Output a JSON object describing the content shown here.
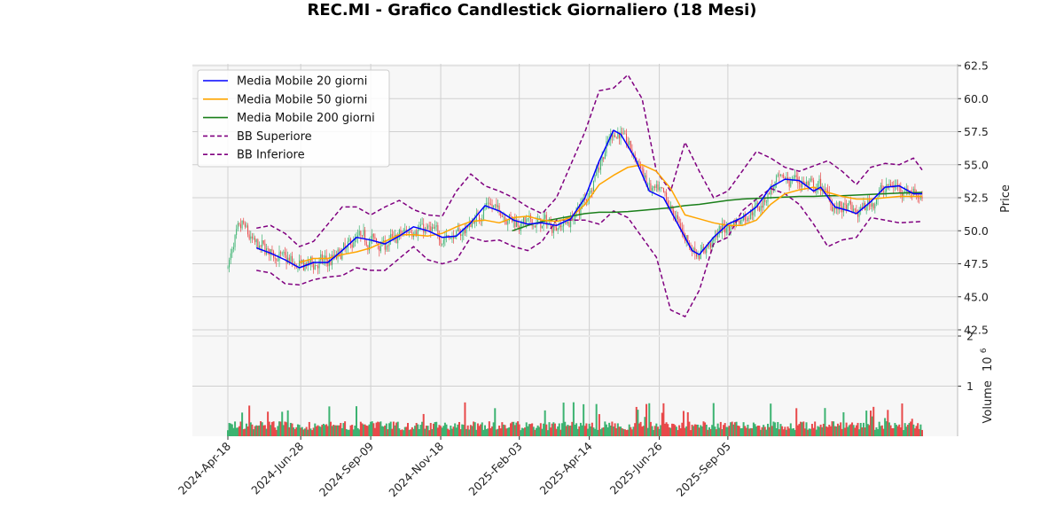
{
  "chart_data": {
    "type": "candlestick",
    "title": "REC.MI - Grafico Candlestick Giornaliero (18 Mesi)",
    "ylabel": "Price",
    "volume_label": "Volume",
    "volume_exponent_base": "10",
    "volume_exponent_power": "6",
    "ylim": [
      42.5,
      62.5
    ],
    "volume_ylim": [
      0,
      2000000
    ],
    "price_ticks": [
      "42.5",
      "45.0",
      "47.5",
      "50.0",
      "52.5",
      "55.0",
      "57.5",
      "60.0",
      "62.5"
    ],
    "volume_ticks": [
      "1",
      "2"
    ],
    "date_ticks": [
      "2024-Apr-18",
      "2024-Jun-28",
      "2024-Sep-09",
      "2024-Nov-18",
      "2025-Feb-03",
      "2025-Apr-14",
      "2025-Jun-26",
      "2025-Sep-05"
    ],
    "grid": true,
    "legend_position": "top-left",
    "colors": {
      "up": "#3cb371",
      "down": "#e8494a",
      "ma20": "#0000ff",
      "ma50": "#ffa500",
      "ma200": "#1a7f1a",
      "bb": "#800080",
      "panel_bg": "#f7f7f7",
      "grid": "#d0d0d0"
    },
    "legend": [
      {
        "label": "Media Mobile 20 giorni",
        "style": "solid",
        "color_key": "ma20"
      },
      {
        "label": "Media Mobile 50 giorni",
        "style": "solid",
        "color_key": "ma50"
      },
      {
        "label": "Media Mobile 200 giorni",
        "style": "solid",
        "color_key": "ma200"
      },
      {
        "label": "BB Superiore",
        "style": "dashed",
        "color_key": "bb"
      },
      {
        "label": "BB Inferiore",
        "style": "dashed",
        "color_key": "bb"
      }
    ],
    "series": {
      "ma20": [
        [
          20,
          48.7
        ],
        [
          30,
          48.3
        ],
        [
          40,
          47.8
        ],
        [
          50,
          47.2
        ],
        [
          60,
          47.6
        ],
        [
          70,
          47.6
        ],
        [
          80,
          48.5
        ],
        [
          90,
          49.5
        ],
        [
          100,
          49.3
        ],
        [
          110,
          49.0
        ],
        [
          120,
          49.6
        ],
        [
          130,
          50.3
        ],
        [
          140,
          50.0
        ],
        [
          150,
          49.5
        ],
        [
          160,
          49.6
        ],
        [
          170,
          50.6
        ],
        [
          180,
          51.9
        ],
        [
          190,
          51.5
        ],
        [
          200,
          50.8
        ],
        [
          210,
          50.5
        ],
        [
          220,
          50.6
        ],
        [
          230,
          50.4
        ],
        [
          240,
          50.9
        ],
        [
          250,
          52.5
        ],
        [
          260,
          55.3
        ],
        [
          270,
          57.6
        ],
        [
          275,
          57.3
        ],
        [
          285,
          55.5
        ],
        [
          295,
          53.0
        ],
        [
          305,
          52.5
        ],
        [
          315,
          50.5
        ],
        [
          325,
          48.5
        ],
        [
          330,
          48.2
        ],
        [
          340,
          49.5
        ],
        [
          350,
          50.5
        ],
        [
          360,
          51.0
        ],
        [
          370,
          51.8
        ],
        [
          380,
          53.3
        ],
        [
          390,
          53.9
        ],
        [
          400,
          53.8
        ],
        [
          410,
          53.0
        ],
        [
          415,
          53.3
        ],
        [
          425,
          51.8
        ],
        [
          435,
          51.5
        ],
        [
          440,
          51.3
        ],
        [
          450,
          52.2
        ],
        [
          460,
          53.3
        ],
        [
          470,
          53.4
        ],
        [
          480,
          52.8
        ],
        [
          486,
          52.8
        ]
      ],
      "ma50": [
        [
          50,
          47.6
        ],
        [
          60,
          47.9
        ],
        [
          70,
          47.9
        ],
        [
          80,
          48.2
        ],
        [
          90,
          48.4
        ],
        [
          100,
          48.7
        ],
        [
          110,
          49.2
        ],
        [
          120,
          49.7
        ],
        [
          130,
          49.7
        ],
        [
          140,
          49.6
        ],
        [
          150,
          49.8
        ],
        [
          160,
          50.3
        ],
        [
          170,
          50.7
        ],
        [
          180,
          50.8
        ],
        [
          190,
          50.6
        ],
        [
          200,
          51.0
        ],
        [
          210,
          51.1
        ],
        [
          220,
          50.8
        ],
        [
          230,
          50.7
        ],
        [
          240,
          51.0
        ],
        [
          250,
          52.0
        ],
        [
          260,
          53.5
        ],
        [
          270,
          54.2
        ],
        [
          280,
          54.8
        ],
        [
          290,
          55.0
        ],
        [
          300,
          54.5
        ],
        [
          310,
          53.2
        ],
        [
          320,
          51.2
        ],
        [
          330,
          50.9
        ],
        [
          340,
          50.6
        ],
        [
          350,
          50.4
        ],
        [
          360,
          50.4
        ],
        [
          370,
          50.8
        ],
        [
          380,
          52.0
        ],
        [
          390,
          52.8
        ],
        [
          400,
          53.1
        ],
        [
          410,
          53.3
        ],
        [
          420,
          52.9
        ],
        [
          430,
          52.6
        ],
        [
          440,
          52.4
        ],
        [
          450,
          52.4
        ],
        [
          460,
          52.5
        ],
        [
          470,
          52.6
        ],
        [
          486,
          52.6
        ]
      ],
      "ma200": [
        [
          199,
          50.0
        ],
        [
          210,
          50.4
        ],
        [
          220,
          50.7
        ],
        [
          230,
          50.9
        ],
        [
          240,
          51.1
        ],
        [
          250,
          51.3
        ],
        [
          260,
          51.4
        ],
        [
          270,
          51.4
        ],
        [
          280,
          51.45
        ],
        [
          290,
          51.55
        ],
        [
          300,
          51.65
        ],
        [
          310,
          51.75
        ],
        [
          320,
          51.9
        ],
        [
          330,
          52.0
        ],
        [
          340,
          52.15
        ],
        [
          350,
          52.3
        ],
        [
          360,
          52.4
        ],
        [
          370,
          52.45
        ],
        [
          380,
          52.5
        ],
        [
          390,
          52.55
        ],
        [
          400,
          52.6
        ],
        [
          410,
          52.6
        ],
        [
          420,
          52.65
        ],
        [
          430,
          52.65
        ],
        [
          440,
          52.7
        ],
        [
          450,
          52.75
        ],
        [
          460,
          52.8
        ],
        [
          470,
          52.85
        ],
        [
          486,
          52.9
        ]
      ],
      "bb_upper": [
        [
          20,
          50.2
        ],
        [
          30,
          50.4
        ],
        [
          40,
          49.8
        ],
        [
          50,
          48.8
        ],
        [
          60,
          49.2
        ],
        [
          70,
          50.5
        ],
        [
          80,
          51.8
        ],
        [
          90,
          51.8
        ],
        [
          100,
          51.2
        ],
        [
          110,
          51.8
        ],
        [
          120,
          52.3
        ],
        [
          130,
          51.6
        ],
        [
          140,
          51.2
        ],
        [
          150,
          51.1
        ],
        [
          160,
          53.0
        ],
        [
          170,
          54.3
        ],
        [
          180,
          53.4
        ],
        [
          190,
          53.0
        ],
        [
          200,
          52.5
        ],
        [
          210,
          51.8
        ],
        [
          220,
          51.3
        ],
        [
          230,
          52.5
        ],
        [
          240,
          55.0
        ],
        [
          250,
          57.5
        ],
        [
          260,
          60.6
        ],
        [
          270,
          60.8
        ],
        [
          280,
          61.8
        ],
        [
          290,
          60.0
        ],
        [
          300,
          54.5
        ],
        [
          310,
          53.0
        ],
        [
          320,
          56.7
        ],
        [
          330,
          54.5
        ],
        [
          340,
          52.5
        ],
        [
          350,
          53.0
        ],
        [
          360,
          54.5
        ],
        [
          370,
          56.0
        ],
        [
          380,
          55.5
        ],
        [
          390,
          54.8
        ],
        [
          400,
          54.5
        ],
        [
          410,
          54.9
        ],
        [
          420,
          55.3
        ],
        [
          430,
          54.5
        ],
        [
          440,
          53.5
        ],
        [
          450,
          54.8
        ],
        [
          460,
          55.1
        ],
        [
          470,
          55.0
        ],
        [
          480,
          55.5
        ],
        [
          486,
          54.6
        ]
      ],
      "bb_lower": [
        [
          20,
          47.0
        ],
        [
          30,
          46.8
        ],
        [
          40,
          46.0
        ],
        [
          50,
          45.9
        ],
        [
          60,
          46.3
        ],
        [
          70,
          46.5
        ],
        [
          80,
          46.6
        ],
        [
          90,
          47.2
        ],
        [
          100,
          47.0
        ],
        [
          110,
          47.0
        ],
        [
          120,
          47.9
        ],
        [
          130,
          48.8
        ],
        [
          140,
          47.8
        ],
        [
          150,
          47.5
        ],
        [
          160,
          47.8
        ],
        [
          170,
          49.5
        ],
        [
          180,
          49.2
        ],
        [
          190,
          49.3
        ],
        [
          200,
          48.8
        ],
        [
          210,
          48.5
        ],
        [
          220,
          49.2
        ],
        [
          230,
          50.8
        ],
        [
          240,
          50.8
        ],
        [
          250,
          50.8
        ],
        [
          260,
          50.5
        ],
        [
          270,
          51.5
        ],
        [
          280,
          51.0
        ],
        [
          290,
          49.5
        ],
        [
          300,
          48.0
        ],
        [
          310,
          44.0
        ],
        [
          320,
          43.5
        ],
        [
          330,
          45.5
        ],
        [
          340,
          49.0
        ],
        [
          350,
          49.5
        ],
        [
          360,
          51.5
        ],
        [
          370,
          52.4
        ],
        [
          380,
          53.2
        ],
        [
          390,
          52.8
        ],
        [
          400,
          52.0
        ],
        [
          410,
          50.5
        ],
        [
          420,
          48.8
        ],
        [
          430,
          49.3
        ],
        [
          440,
          49.5
        ],
        [
          450,
          51.0
        ],
        [
          460,
          50.8
        ],
        [
          470,
          50.6
        ],
        [
          486,
          50.7
        ]
      ]
    }
  }
}
